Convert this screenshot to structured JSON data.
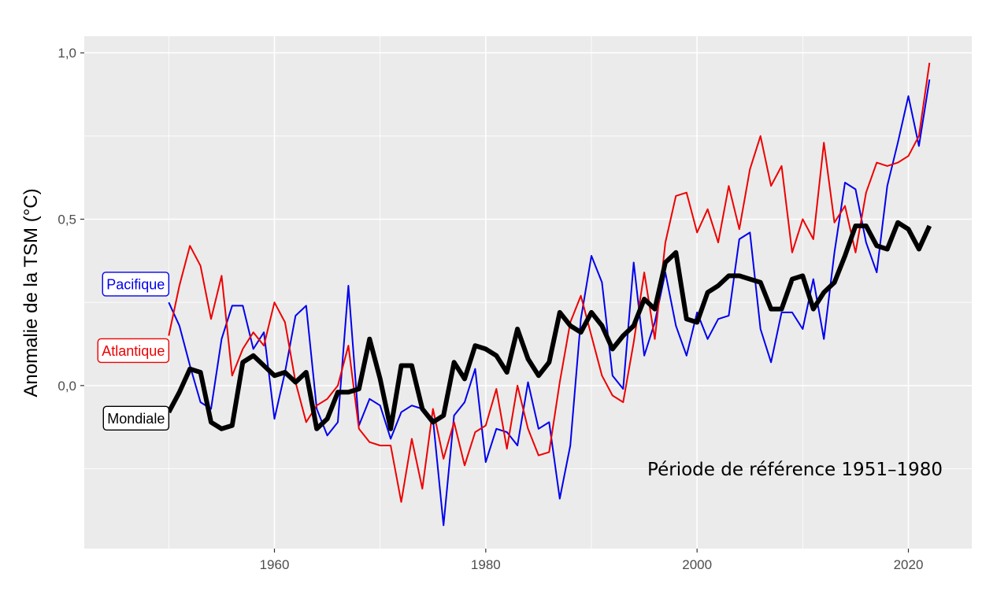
{
  "chart_data": {
    "type": "line",
    "title": "",
    "xlabel": "",
    "ylabel": "Anomalie de la TSM (°C)",
    "xlim": [
      1942,
      2026
    ],
    "ylim": [
      -0.49,
      1.05
    ],
    "x_ticks": [
      1960,
      1980,
      2000,
      2020
    ],
    "x_tick_labels": [
      "1960",
      "1980",
      "2000",
      "2020"
    ],
    "y_ticks": [
      0.0,
      0.5,
      1.0
    ],
    "y_tick_labels": [
      "0,0",
      "0,5",
      "1,0"
    ],
    "grid": true,
    "legend": "none",
    "annotation": "Période de référence 1951–1980",
    "series": [
      {
        "name": "Pacifique",
        "color": "#0000ee",
        "x": [
          1950,
          1951,
          1952,
          1953,
          1954,
          1955,
          1956,
          1957,
          1958,
          1959,
          1960,
          1961,
          1962,
          1963,
          1964,
          1965,
          1966,
          1967,
          1968,
          1969,
          1970,
          1971,
          1972,
          1973,
          1974,
          1975,
          1976,
          1977,
          1978,
          1979,
          1980,
          1981,
          1982,
          1983,
          1984,
          1985,
          1986,
          1987,
          1988,
          1989,
          1990,
          1991,
          1992,
          1993,
          1994,
          1995,
          1996,
          1997,
          1998,
          1999,
          2000,
          2001,
          2002,
          2003,
          2004,
          2005,
          2006,
          2007,
          2008,
          2009,
          2010,
          2011,
          2012,
          2013,
          2014,
          2015,
          2016,
          2017,
          2018,
          2019,
          2020,
          2021,
          2022
        ],
        "values": [
          0.25,
          0.18,
          0.06,
          -0.05,
          -0.07,
          0.14,
          0.24,
          0.24,
          0.11,
          0.16,
          -0.1,
          0.04,
          0.21,
          0.24,
          -0.07,
          -0.15,
          -0.11,
          0.3,
          -0.12,
          -0.04,
          -0.06,
          -0.16,
          -0.08,
          -0.06,
          -0.07,
          -0.1,
          -0.42,
          -0.09,
          -0.05,
          0.05,
          -0.23,
          -0.13,
          -0.14,
          -0.18,
          0.01,
          -0.13,
          -0.11,
          -0.34,
          -0.18,
          0.2,
          0.39,
          0.31,
          0.03,
          -0.01,
          0.37,
          0.09,
          0.19,
          0.34,
          0.18,
          0.09,
          0.22,
          0.14,
          0.2,
          0.21,
          0.44,
          0.46,
          0.17,
          0.07,
          0.22,
          0.22,
          0.17,
          0.32,
          0.14,
          0.4,
          0.61,
          0.59,
          0.43,
          0.34,
          0.6,
          0.73,
          0.87,
          0.72,
          0.92
        ]
      },
      {
        "name": "Atlantique",
        "color": "#ee0000",
        "x": [
          1950,
          1951,
          1952,
          1953,
          1954,
          1955,
          1956,
          1957,
          1958,
          1959,
          1960,
          1961,
          1962,
          1963,
          1964,
          1965,
          1966,
          1967,
          1968,
          1969,
          1970,
          1971,
          1972,
          1973,
          1974,
          1975,
          1976,
          1977,
          1978,
          1979,
          1980,
          1981,
          1982,
          1983,
          1984,
          1985,
          1986,
          1987,
          1988,
          1989,
          1990,
          1991,
          1992,
          1993,
          1994,
          1995,
          1996,
          1997,
          1998,
          1999,
          2000,
          2001,
          2002,
          2003,
          2004,
          2005,
          2006,
          2007,
          2008,
          2009,
          2010,
          2011,
          2012,
          2013,
          2014,
          2015,
          2016,
          2017,
          2018,
          2019,
          2020,
          2021,
          2022
        ],
        "values": [
          0.15,
          0.3,
          0.42,
          0.36,
          0.2,
          0.33,
          0.03,
          0.11,
          0.16,
          0.12,
          0.25,
          0.19,
          0.01,
          -0.11,
          -0.06,
          -0.04,
          0.0,
          0.12,
          -0.13,
          -0.17,
          -0.18,
          -0.18,
          -0.35,
          -0.16,
          -0.31,
          -0.07,
          -0.22,
          -0.11,
          -0.24,
          -0.14,
          -0.12,
          -0.01,
          -0.19,
          0.0,
          -0.13,
          -0.21,
          -0.2,
          0.01,
          0.19,
          0.27,
          0.15,
          0.03,
          -0.03,
          -0.05,
          0.13,
          0.34,
          0.14,
          0.43,
          0.57,
          0.58,
          0.46,
          0.53,
          0.43,
          0.6,
          0.47,
          0.65,
          0.75,
          0.6,
          0.66,
          0.4,
          0.5,
          0.44,
          0.73,
          0.49,
          0.54,
          0.4,
          0.58,
          0.67,
          0.66,
          0.67,
          0.69,
          0.75,
          0.97
        ]
      },
      {
        "name": "Mondiale",
        "color": "#000000",
        "x": [
          1950,
          1951,
          1952,
          1953,
          1954,
          1955,
          1956,
          1957,
          1958,
          1959,
          1960,
          1961,
          1962,
          1963,
          1964,
          1965,
          1966,
          1967,
          1968,
          1969,
          1970,
          1971,
          1972,
          1973,
          1974,
          1975,
          1976,
          1977,
          1978,
          1979,
          1980,
          1981,
          1982,
          1983,
          1984,
          1985,
          1986,
          1987,
          1988,
          1989,
          1990,
          1991,
          1992,
          1993,
          1994,
          1995,
          1996,
          1997,
          1998,
          1999,
          2000,
          2001,
          2002,
          2003,
          2004,
          2005,
          2006,
          2007,
          2008,
          2009,
          2010,
          2011,
          2012,
          2013,
          2014,
          2015,
          2016,
          2017,
          2018,
          2019,
          2020,
          2021,
          2022
        ],
        "values": [
          -0.08,
          -0.02,
          0.05,
          0.04,
          -0.11,
          -0.13,
          -0.12,
          0.07,
          0.09,
          0.06,
          0.03,
          0.04,
          0.01,
          0.04,
          -0.13,
          -0.1,
          -0.02,
          -0.02,
          -0.01,
          0.14,
          0.02,
          -0.13,
          0.06,
          0.06,
          -0.07,
          -0.11,
          -0.09,
          0.07,
          0.02,
          0.12,
          0.11,
          0.09,
          0.04,
          0.17,
          0.08,
          0.03,
          0.07,
          0.22,
          0.18,
          0.16,
          0.22,
          0.18,
          0.11,
          0.15,
          0.18,
          0.26,
          0.23,
          0.37,
          0.4,
          0.2,
          0.19,
          0.28,
          0.3,
          0.33,
          0.33,
          0.32,
          0.31,
          0.23,
          0.23,
          0.32,
          0.33,
          0.23,
          0.28,
          0.31,
          0.39,
          0.48,
          0.48,
          0.42,
          0.41,
          0.49,
          0.47,
          0.41,
          0.48
        ]
      }
    ]
  }
}
